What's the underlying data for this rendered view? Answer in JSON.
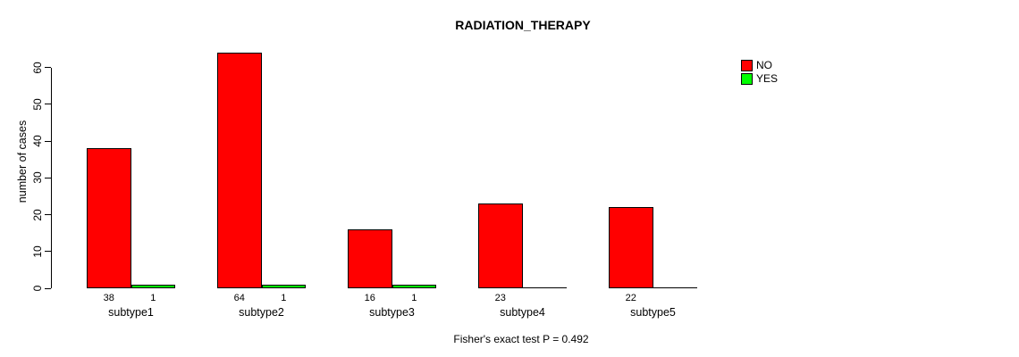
{
  "chart_data": {
    "type": "bar",
    "title": "RADIATION_THERAPY",
    "ylabel": "number of cases",
    "xlabel": "",
    "footer": "Fisher's exact test P = 0.492",
    "categories": [
      "subtype1",
      "subtype2",
      "subtype3",
      "subtype4",
      "subtype5"
    ],
    "series": [
      {
        "name": "NO",
        "color": "#ff0000",
        "values": [
          38,
          64,
          16,
          23,
          22
        ],
        "value_labels": [
          "38",
          "64",
          "16",
          "23",
          "22"
        ]
      },
      {
        "name": "YES",
        "color": "#00ff00",
        "values": [
          1,
          1,
          1,
          0,
          0
        ],
        "value_labels": [
          "1",
          "1",
          "1",
          "",
          ""
        ]
      }
    ],
    "yticks": [
      0,
      10,
      20,
      30,
      40,
      50,
      60
    ],
    "ylim": [
      0,
      64
    ],
    "grid": false,
    "legend": {
      "position": "top-right",
      "entries": [
        {
          "label": "NO",
          "color": "#ff0000"
        },
        {
          "label": "YES",
          "color": "#00ff00"
        }
      ]
    },
    "axis_color": "#000000",
    "background": "#ffffff"
  }
}
